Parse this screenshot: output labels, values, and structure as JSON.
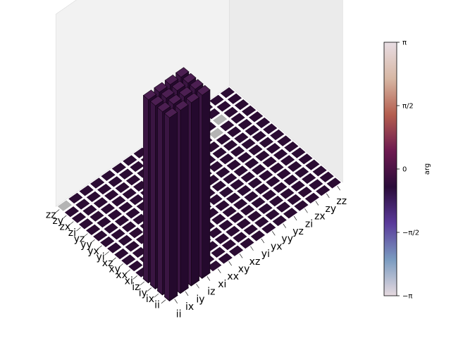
{
  "chart_data": {
    "type": "bar3d",
    "basis_labels": [
      "ii",
      "ix",
      "iy",
      "iz",
      "xi",
      "xx",
      "xy",
      "xz",
      "yi",
      "yx",
      "yy",
      "yz",
      "zi",
      "zx",
      "zy",
      "zz"
    ],
    "nonzero_elements": [
      {
        "row": "ii",
        "col": "ii",
        "value": 1.0,
        "phase": 0
      },
      {
        "row": "ii",
        "col": "ix",
        "value": 1.0,
        "phase": 0
      },
      {
        "row": "ii",
        "col": "iy",
        "value": 1.0,
        "phase": 0
      },
      {
        "row": "ii",
        "col": "iz",
        "value": 1.0,
        "phase": 0
      },
      {
        "row": "ix",
        "col": "ii",
        "value": 1.0,
        "phase": 0
      },
      {
        "row": "ix",
        "col": "ix",
        "value": 1.0,
        "phase": 0
      },
      {
        "row": "ix",
        "col": "iy",
        "value": 1.0,
        "phase": 0
      },
      {
        "row": "ix",
        "col": "iz",
        "value": 1.0,
        "phase": 0
      },
      {
        "row": "iy",
        "col": "ii",
        "value": 1.0,
        "phase": 0
      },
      {
        "row": "iy",
        "col": "ix",
        "value": 1.0,
        "phase": 0
      },
      {
        "row": "iy",
        "col": "iy",
        "value": 1.0,
        "phase": 0
      },
      {
        "row": "iy",
        "col": "iz",
        "value": 1.0,
        "phase": 0
      },
      {
        "row": "iz",
        "col": "ii",
        "value": 1.0,
        "phase": 0
      },
      {
        "row": "iz",
        "col": "ix",
        "value": 1.0,
        "phase": 0
      },
      {
        "row": "iz",
        "col": "iy",
        "value": 1.0,
        "phase": 0
      },
      {
        "row": "iz",
        "col": "iz",
        "value": 1.0,
        "phase": 0
      }
    ],
    "highlighted_cells": [
      {
        "row": "zi",
        "col": "zi",
        "phase": 3.1416
      },
      {
        "row": "zx",
        "col": "zx",
        "phase": 3.1416
      },
      {
        "row": "zz",
        "col": "ii",
        "phase": 3.1416
      }
    ],
    "colorbar": {
      "label": "arg",
      "ticks": [
        "−π",
        "−π/2",
        "0",
        "π/2",
        "π"
      ],
      "tick_values": [
        -3.1416,
        -1.5708,
        0,
        1.5708,
        3.1416
      ],
      "range": [
        -3.1416,
        3.1416
      ],
      "colormap_stops": [
        "#e6d9df",
        "#7a9bc0",
        "#5a3a9a",
        "#2b0c3a",
        "#6d1a50",
        "#b45e4f",
        "#d7b7a4",
        "#e8dde3"
      ]
    },
    "colors": {
      "bar_top": "#4c1f52",
      "bar_side_light": "#3a1542",
      "bar_side_dark": "#24092d",
      "floor_cell": "#2b0c33",
      "floor_grid": "#ffffff",
      "pane": "#f2f2f2",
      "highlight_cell": "#b4b4b4"
    },
    "grid": false,
    "legend": "none",
    "title": ""
  }
}
